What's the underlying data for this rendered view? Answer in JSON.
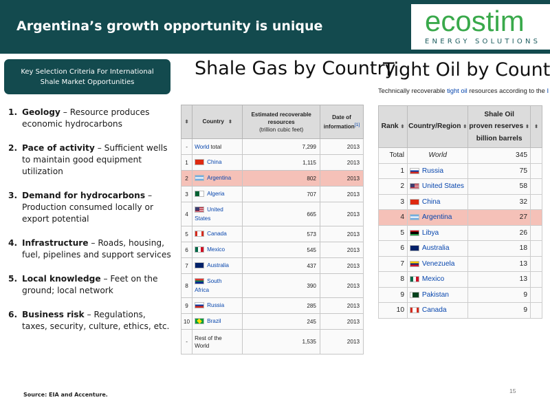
{
  "header": {
    "title": "Argentina’s growth opportunity is unique",
    "logo_word": "ecostim",
    "logo_sub": "ENERGY SOLUTIONS"
  },
  "criteria": {
    "box_title": "Key Selection Criteria For International Shale Market Opportunities",
    "items": [
      {
        "num": "1.",
        "head": "Geology",
        "text": " – Resource produces economic hydrocarbons"
      },
      {
        "num": "2.",
        "head": "Pace of activity",
        "text": " – Sufficient wells to maintain good equipment utilization"
      },
      {
        "num": "3.",
        "head": "Demand for hydrocarbons",
        "text": " – Production consumed locally or export potential"
      },
      {
        "num": "4.",
        "head": "Infrastructure",
        "text": " – Roads, housing, fuel, pipelines and support services"
      },
      {
        "num": "5.",
        "head": "Local knowledge",
        "text": " – Feet on the ground; local network"
      },
      {
        "num": "6.",
        "head": "Business risk",
        "text": " – Regulations, taxes, security, culture, ethics, etc."
      }
    ]
  },
  "source": "Source: EIA and Accenture.",
  "page_number": "15",
  "shale_gas": {
    "title": "Shale Gas by Country",
    "headers": {
      "country": "Country",
      "resources_line1": "Estimated recoverable",
      "resources_line2": "resources",
      "resources_unit": "(trillion cubic feet)",
      "date": "Date of",
      "date2": "information",
      "date_ref": "[1]"
    },
    "rows": [
      {
        "rank": "-",
        "country_link": "World",
        "country_rest": " total",
        "flag": "",
        "value": "7,299",
        "year": "2013"
      },
      {
        "rank": "1",
        "country_link": "China",
        "country_rest": "",
        "flag": "china",
        "value": "1,115",
        "year": "2013"
      },
      {
        "rank": "2",
        "country_link": "Argentina",
        "country_rest": "",
        "flag": "argentina",
        "value": "802",
        "year": "2013"
      },
      {
        "rank": "3",
        "country_link": "Algeria",
        "country_rest": "",
        "flag": "algeria",
        "value": "707",
        "year": "2013"
      },
      {
        "rank": "4",
        "country_link": "United",
        "country_link2": "States",
        "country_rest": "",
        "flag": "usa",
        "value": "665",
        "year": "2013"
      },
      {
        "rank": "5",
        "country_link": "Canada",
        "country_rest": "",
        "flag": "canada",
        "value": "573",
        "year": "2013"
      },
      {
        "rank": "6",
        "country_link": "Mexico",
        "country_rest": "",
        "flag": "mexico",
        "value": "545",
        "year": "2013"
      },
      {
        "rank": "7",
        "country_link": "Australia",
        "country_rest": "",
        "flag": "australia",
        "value": "437",
        "year": "2013"
      },
      {
        "rank": "8",
        "country_link": "South",
        "country_link2": "Africa",
        "country_rest": "",
        "flag": "southafrica",
        "value": "390",
        "year": "2013"
      },
      {
        "rank": "9",
        "country_link": "Russia",
        "country_rest": "",
        "flag": "russia",
        "value": "285",
        "year": "2013"
      },
      {
        "rank": "10",
        "country_link": "Brazil",
        "country_rest": "",
        "flag": "brazil",
        "value": "245",
        "year": "2013"
      },
      {
        "rank": "-",
        "country_link": "",
        "country_rest": "Rest of the",
        "country_rest2": "World",
        "flag": "",
        "value": "1,535",
        "year": "2013"
      }
    ]
  },
  "tight_oil": {
    "title": "Tight Oil by Country",
    "note_prefix": "Technically recoverable ",
    "note_link": "tight oil",
    "note_suffix": " resources according to the ",
    "note_tail": "I",
    "headers": {
      "rank": "Rank",
      "region": "Country/Region",
      "value_line1": "Shale Oil",
      "value_line2": "proven reserves",
      "value_line3": "billion barrels"
    },
    "rows": [
      {
        "rank": "Total",
        "country": "World",
        "flag": "",
        "value": "345"
      },
      {
        "rank": "1",
        "country": "Russia",
        "flag": "russia",
        "value": "75"
      },
      {
        "rank": "2",
        "country": "United States",
        "flag": "usa",
        "value": "58"
      },
      {
        "rank": "3",
        "country": "China",
        "flag": "china",
        "value": "32"
      },
      {
        "rank": "4",
        "country": "Argentina",
        "flag": "argentina",
        "value": "27"
      },
      {
        "rank": "5",
        "country": "Libya",
        "flag": "libya",
        "value": "26"
      },
      {
        "rank": "6",
        "country": "Australia",
        "flag": "australia",
        "value": "18"
      },
      {
        "rank": "7",
        "country": "Venezuela",
        "flag": "venezuela",
        "value": "13"
      },
      {
        "rank": "8",
        "country": "Mexico",
        "flag": "mexico",
        "value": "13"
      },
      {
        "rank": "9",
        "country": "Pakistan",
        "flag": "pakistan",
        "value": "9"
      },
      {
        "rank": "10",
        "country": "Canada",
        "flag": "canada",
        "value": "9"
      }
    ]
  },
  "colors": {
    "header_bg": "#134a4e",
    "logo_green": "#39a94b",
    "highlight": "#f5c1b8",
    "link": "#0645ad"
  }
}
